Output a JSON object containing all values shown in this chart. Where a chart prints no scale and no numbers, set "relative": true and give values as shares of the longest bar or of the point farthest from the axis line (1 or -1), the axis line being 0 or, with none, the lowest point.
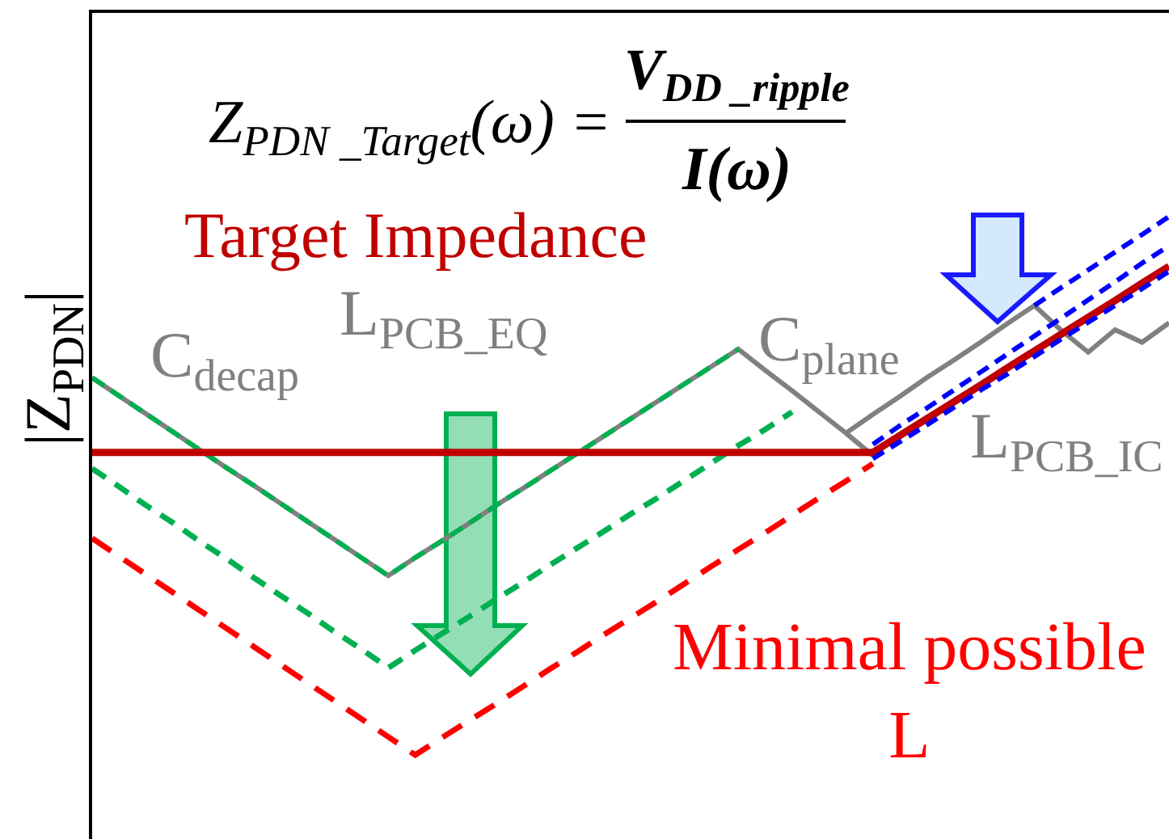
{
  "chart_data": {
    "type": "line",
    "ylabel": "|Z$_{PDN}$|",
    "relative": true,
    "categories": [
      null,
      null,
      null,
      null,
      null,
      null,
      null,
      null,
      null,
      null,
      null,
      null,
      null,
      null,
      null,
      null,
      null,
      null,
      null,
      null,
      null,
      null,
      null,
      null,
      null,
      null,
      null,
      null,
      null,
      null,
      null,
      null,
      null,
      null,
      null,
      null,
      null,
      null,
      null,
      null,
      null
    ],
    "annotations": [
      "Z$_{PDN _Target}$(ω) =",
      "V$_{DD _ripple}$",
      "I(ω)",
      "C$_{decap}$",
      "L$_{PCB_EQ}$",
      "C$_{plane}$",
      "L$_{PCB_IC}$"
    ],
    "series": [
      {
        "color": "#808080",
        "line_style": "solid",
        "values": [
          0.741,
          0.712,
          0.683,
          0.654,
          0.625,
          0.596,
          0.568,
          0.539,
          0.51,
          0.481,
          0.452,
          0.423,
          0.452,
          0.479,
          0.507,
          0.536,
          0.563,
          0.591,
          0.619,
          0.647,
          0.675,
          0.703,
          0.731,
          0.759,
          0.787,
          0.753,
          0.72,
          0.686,
          0.652,
          0.682,
          0.711,
          0.741,
          0.769,
          0.798,
          0.828,
          0.857,
          0.817,
          0.782,
          0.818,
          0.798,
          0.829
        ]
      },
      {
        "color": "#808080",
        "line_style": "solid",
        "values": [
          null,
          null,
          null,
          null,
          null,
          null,
          null,
          null,
          null,
          null,
          null,
          null,
          null,
          null,
          null,
          null,
          null,
          null,
          null,
          null,
          null,
          null,
          null,
          null,
          null,
          null,
          null,
          null,
          0.652,
          0.616,
          null,
          null,
          null,
          null,
          null,
          null,
          null,
          null,
          null,
          null,
          null
        ]
      },
      {
        "color": "#00b050",
        "line_style": "dashed",
        "values": [
          0.741,
          0.712,
          0.683,
          0.654,
          0.625,
          0.596,
          0.568,
          0.539,
          0.51,
          0.481,
          0.452,
          0.423,
          0.452,
          0.479,
          0.507,
          0.536,
          0.563,
          0.591,
          0.619,
          0.647,
          0.675,
          0.703,
          0.731,
          0.759,
          0.787,
          null,
          null,
          null,
          null,
          null,
          null,
          null,
          null,
          null,
          null,
          null,
          null,
          null,
          null,
          null,
          null
        ]
      },
      {
        "color": "#00b050",
        "line_style": "dashed",
        "values": [
          0.595,
          0.566,
          0.536,
          0.508,
          0.478,
          0.45,
          0.42,
          0.391,
          0.363,
          0.333,
          0.305,
          0.275,
          0.303,
          0.33,
          0.357,
          0.385,
          0.412,
          0.44,
          0.467,
          0.494,
          0.522,
          0.548,
          0.576,
          0.604,
          0.632,
          0.658,
          0.686,
          null,
          null,
          null,
          null,
          null,
          null,
          null,
          null,
          null,
          null,
          null,
          null,
          null,
          null
        ]
      },
      {
        "name": "Minimal possible\nL",
        "color": "#ff0000",
        "line_style": "dashed",
        "values": [
          0.483,
          0.454,
          0.425,
          0.396,
          0.367,
          0.338,
          0.309,
          0.28,
          0.251,
          0.222,
          0.193,
          0.164,
          0.135,
          0.163,
          0.19,
          0.217,
          0.245,
          0.273,
          0.3,
          0.328,
          0.355,
          0.382,
          0.41,
          0.438,
          0.465,
          0.492,
          0.52,
          0.548,
          0.575,
          0.603,
          null,
          null,
          null,
          null,
          null,
          null,
          null,
          null,
          null,
          null,
          null
        ]
      },
      {
        "name": "Target Impedance",
        "color": "#c00000",
        "line_style": "solid",
        "values": [
          0.621,
          0.621,
          0.621,
          0.621,
          0.621,
          0.621,
          0.621,
          0.621,
          0.621,
          0.621,
          0.621,
          0.621,
          0.621,
          0.621,
          0.621,
          0.621,
          0.621,
          0.621,
          0.621,
          0.621,
          0.621,
          0.621,
          0.621,
          0.621,
          0.621,
          0.621,
          0.621,
          0.621,
          0.621,
          0.621,
          0.648,
          0.675,
          0.702,
          0.729,
          0.757,
          0.784,
          0.811,
          0.838,
          0.865,
          0.893,
          0.92
        ]
      },
      {
        "color": "#0000ff",
        "line_style": "dashed",
        "values": [
          null,
          null,
          null,
          null,
          null,
          null,
          null,
          null,
          null,
          null,
          null,
          null,
          null,
          null,
          null,
          null,
          null,
          null,
          null,
          null,
          null,
          null,
          null,
          null,
          null,
          null,
          null,
          null,
          null,
          null,
          null,
          null,
          null,
          null,
          null,
          0.857,
          0.886,
          0.914,
          0.943,
          0.971,
          1
        ]
      },
      {
        "color": "#0000ff",
        "line_style": "dashed",
        "values": [
          null,
          null,
          null,
          null,
          null,
          null,
          null,
          null,
          null,
          null,
          null,
          null,
          null,
          null,
          null,
          null,
          null,
          null,
          null,
          null,
          null,
          null,
          null,
          null,
          null,
          null,
          null,
          null,
          null,
          0.634,
          0.664,
          0.692,
          0.721,
          0.75,
          0.779,
          0.808,
          0.837,
          0.866,
          0.895,
          0.925,
          0.953
        ]
      },
      {
        "color": "#0000ff",
        "line_style": "dashed",
        "values": [
          null,
          null,
          null,
          null,
          null,
          null,
          null,
          null,
          null,
          null,
          null,
          null,
          null,
          null,
          null,
          null,
          null,
          null,
          null,
          null,
          null,
          null,
          null,
          null,
          null,
          null,
          null,
          null,
          null,
          0.611,
          0.638,
          0.665,
          0.693,
          0.721,
          0.747,
          0.775,
          0.803,
          0.83,
          0.857,
          0.884,
          0.912
        ]
      }
    ]
  }
}
